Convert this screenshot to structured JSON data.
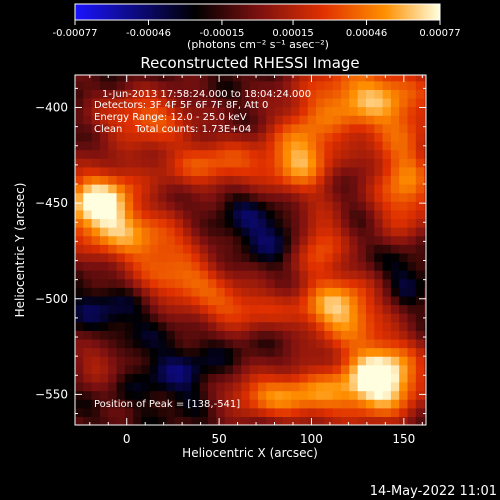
{
  "colorbar": {
    "tick_labels": [
      "-0.00077",
      "-0.00046",
      "-0.00015",
      "0.00015",
      "0.00046",
      "0.00077"
    ],
    "tick_values": [
      -0.00077,
      -0.00046,
      -0.00015,
      0.00015,
      0.00046,
      0.00077
    ],
    "range": [
      -0.00077,
      0.00077
    ],
    "units_label": "(photons cm⁻² s⁻¹ asec⁻²)",
    "colors": [
      "#1a14ff",
      "#000000",
      "#7a1010",
      "#e03000",
      "#ff9000",
      "#ffffe0"
    ]
  },
  "info": {
    "time_range": "1-Jun-2013 17:58:24.000 to 18:04:24.000",
    "detectors": "Detectors: 3F 4F 5F 6F 7F 8F, Att 0",
    "energy": "Energy Range: 12.0 - 25.0 keV",
    "clean": "Clean    Total counts: 1.73E+04",
    "peak": "Position of Peak = [138,-541]"
  },
  "footer": {
    "timestamp": "14-May-2022 11:01"
  },
  "chart_data": {
    "type": "heatmap",
    "title": "Reconstructed RHESSI Image",
    "xlabel": "Heliocentric X (arcsec)",
    "ylabel": "Heliocentric Y (arcsec)",
    "xlim": [
      -28,
      162
    ],
    "ylim": [
      -566,
      -383
    ],
    "x_ticks": [
      0,
      50,
      100,
      150
    ],
    "x_tick_labels": [
      "0",
      "50",
      "100",
      "150"
    ],
    "y_ticks": [
      -400,
      -450,
      -500,
      -550
    ],
    "y_tick_labels": [
      "−400",
      "−450",
      "−500",
      "−550"
    ],
    "peak": {
      "x": 138,
      "y": -541
    },
    "emission_regions": [
      {
        "x": -15,
        "y": -450,
        "sx": 15,
        "sy": 12,
        "amp": 0.95
      },
      {
        "x": 10,
        "y": -470,
        "sx": 22,
        "sy": 10,
        "amp": 0.55
      },
      {
        "x": 30,
        "y": -490,
        "sx": 18,
        "sy": 8,
        "amp": 0.5
      },
      {
        "x": 60,
        "y": -505,
        "sx": 20,
        "sy": 8,
        "amp": 0.45
      },
      {
        "x": 50,
        "y": -430,
        "sx": 25,
        "sy": 10,
        "amp": 0.5
      },
      {
        "x": 95,
        "y": -425,
        "sx": 12,
        "sy": 15,
        "amp": 0.6
      },
      {
        "x": 130,
        "y": -395,
        "sx": 25,
        "sy": 15,
        "amp": 0.7
      },
      {
        "x": 150,
        "y": -440,
        "sx": 12,
        "sy": 20,
        "amp": 0.6
      },
      {
        "x": 105,
        "y": -470,
        "sx": 10,
        "sy": 12,
        "amp": 0.55
      },
      {
        "x": 115,
        "y": -505,
        "sx": 15,
        "sy": 12,
        "amp": 0.75
      },
      {
        "x": 100,
        "y": -550,
        "sx": 18,
        "sy": 10,
        "amp": 0.55
      },
      {
        "x": 138,
        "y": -541,
        "sx": 15,
        "sy": 14,
        "amp": 1.0
      },
      {
        "x": -15,
        "y": -530,
        "sx": 10,
        "sy": 10,
        "amp": 0.3
      },
      {
        "x": 10,
        "y": -405,
        "sx": 18,
        "sy": 10,
        "amp": 0.5
      },
      {
        "x": 70,
        "y": -550,
        "sx": 15,
        "sy": 8,
        "amp": 0.4
      }
    ],
    "negative_regions": [
      {
        "x": -10,
        "y": -510,
        "sx": 15,
        "sy": 15,
        "amp": 0.5
      },
      {
        "x": 80,
        "y": -465,
        "sx": 25,
        "sy": 10,
        "amp": 0.55
      },
      {
        "x": 150,
        "y": -485,
        "sx": 10,
        "sy": 12,
        "amp": 0.5
      },
      {
        "x": 30,
        "y": -540,
        "sx": 18,
        "sy": 12,
        "amp": 0.45
      },
      {
        "x": 60,
        "y": -445,
        "sx": 12,
        "sy": 8,
        "amp": 0.35
      }
    ]
  }
}
